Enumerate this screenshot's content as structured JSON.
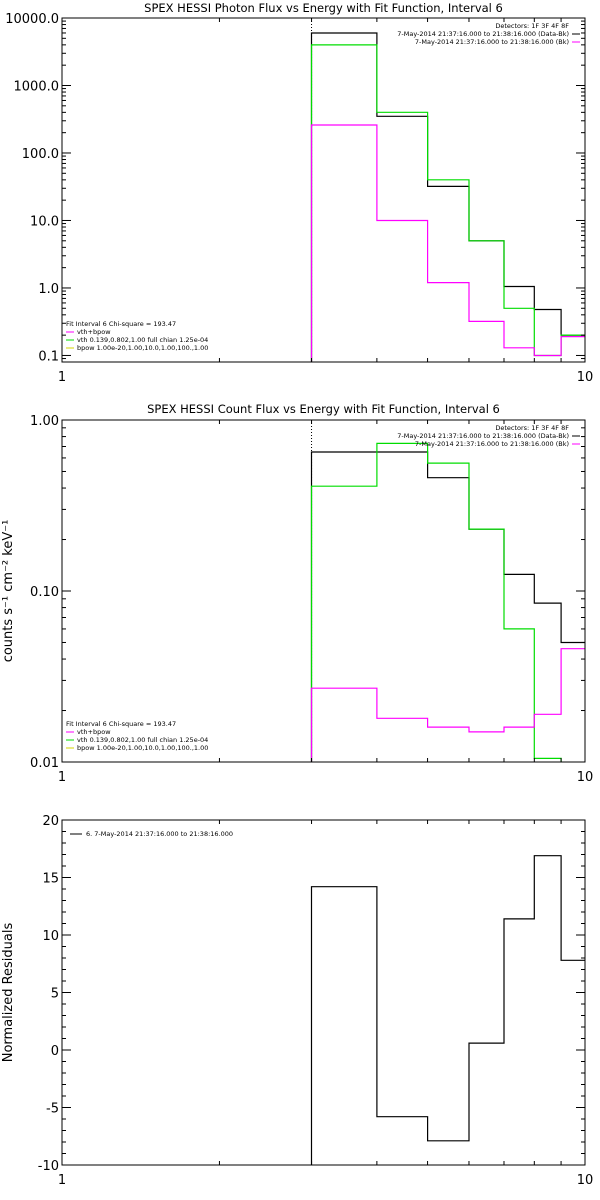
{
  "colors": {
    "data": "#000000",
    "total": "#ff00ff",
    "vth": "#00dd00",
    "bpow": "#d4d400",
    "background": "#ffffff"
  },
  "chart_data": [
    {
      "type": "line",
      "step": true,
      "title": "SPEX HESSI Photon Flux vs Energy with Fit Function, Interval 6",
      "xlabel": "",
      "ylabel": "",
      "xscale": "log",
      "yscale": "log",
      "xlim": [
        1,
        10
      ],
      "ylim": [
        0.08,
        10000
      ],
      "xticks": [
        {
          "v": 1,
          "label": "1"
        },
        {
          "v": 10,
          "label": "10"
        }
      ],
      "yticks": [
        {
          "v": 0.1,
          "label": "0.1"
        },
        {
          "v": 1,
          "label": "1.0"
        },
        {
          "v": 10,
          "label": "10.0"
        },
        {
          "v": 100,
          "label": "100.0"
        },
        {
          "v": 1000,
          "label": "1000.0"
        },
        {
          "v": 10000,
          "label": "10000.0"
        }
      ],
      "vline": 3,
      "edges": [
        3,
        4,
        5,
        6,
        7,
        8,
        9,
        10
      ],
      "legend_top": [
        "Detectors: 1F 3F 4F 8F",
        "7-May-2014 21:37:16.000 to 21:38:16.000 (Data-Bk)",
        "7-May-2014 21:37:16.000 to 21:38:16.000 (Bk)"
      ],
      "legend_bottom": [
        "Fit Interval 6   Chi-square = 193.47",
        "vth+bpow",
        "vth 0.139,0.802,1.00  full chian 1.25e-04",
        "bpow 1.00e-20,1.00,10.0,1.00,100.,1.00"
      ],
      "series": [
        {
          "color": "data",
          "values": [
            6000,
            350,
            32,
            5,
            1.05,
            0.48,
            0.2
          ]
        },
        {
          "color": "vth",
          "values": [
            4000,
            400,
            40,
            5,
            0.5,
            0.1,
            0.2
          ]
        },
        {
          "color": "total",
          "values": [
            260,
            10,
            1.2,
            0.32,
            0.13,
            0.1,
            0.19
          ]
        }
      ]
    },
    {
      "type": "line",
      "step": true,
      "title": "SPEX HESSI Count Flux vs Energy with Fit Function, Interval 6",
      "xlabel": "",
      "ylabel": "counts s⁻¹ cm⁻² keV⁻¹",
      "xscale": "log",
      "yscale": "log",
      "xlim": [
        1,
        10
      ],
      "ylim": [
        0.01,
        1
      ],
      "xticks": [
        {
          "v": 1,
          "label": "1"
        },
        {
          "v": 10,
          "label": "10"
        }
      ],
      "yticks": [
        {
          "v": 0.01,
          "label": "0.01"
        },
        {
          "v": 0.1,
          "label": "0.10"
        },
        {
          "v": 1,
          "label": "1.00"
        }
      ],
      "vline": 3,
      "edges": [
        3,
        4,
        5,
        6,
        7,
        8,
        9,
        10
      ],
      "legend_top": [
        "Detectors: 1F 3F 4F 8F",
        "7-May-2014 21:37:16.000 to 21:38:16.000 (Data-Bk)",
        "7-May-2014 21:37:16.000 to 21:38:16.000 (Bk)"
      ],
      "legend_bottom": [
        "Fit Interval 6   Chi-square = 193.47",
        "vth+bpow",
        "vth 0.139,0.802,1.00  full chian 1.25e-04",
        "bpow 1.00e-20,1.00,10.0,1.00,100.,1.00"
      ],
      "series": [
        {
          "color": "data",
          "values": [
            0.65,
            0.65,
            0.46,
            0.23,
            0.125,
            0.085,
            0.05
          ]
        },
        {
          "color": "vth",
          "values": [
            0.41,
            0.73,
            0.56,
            0.23,
            0.06,
            0.0105,
            0.0095
          ]
        },
        {
          "color": "total",
          "values": [
            0.027,
            0.018,
            0.016,
            0.015,
            0.016,
            0.019,
            0.046
          ]
        }
      ]
    },
    {
      "type": "line",
      "step": true,
      "title": "",
      "xlabel": "",
      "ylabel": "Normalized Residuals",
      "xscale": "log",
      "yscale": "linear",
      "xlim": [
        1,
        10
      ],
      "ylim": [
        -10,
        20
      ],
      "xticks": [
        {
          "v": 1,
          "label": "1"
        },
        {
          "v": 10,
          "label": "10"
        }
      ],
      "yticks": [
        {
          "v": -10,
          "label": "-10"
        },
        {
          "v": -5,
          "label": "-5"
        },
        {
          "v": 0,
          "label": "0"
        },
        {
          "v": 5,
          "label": "5"
        },
        {
          "v": 10,
          "label": "10"
        },
        {
          "v": 15,
          "label": "15"
        },
        {
          "v": 20,
          "label": "20"
        }
      ],
      "vline": null,
      "legend_top": [],
      "legend_bottom": [],
      "legend_top_left": [
        "6.  7-May-2014 21:37:16.000 to 21:38:16.000"
      ],
      "edges": [
        3,
        4,
        5,
        6,
        7,
        8,
        9,
        10
      ],
      "series": [
        {
          "color": "data",
          "values": [
            14.2,
            -5.8,
            -7.9,
            0.6,
            11.4,
            16.9,
            7.8
          ]
        }
      ]
    }
  ]
}
